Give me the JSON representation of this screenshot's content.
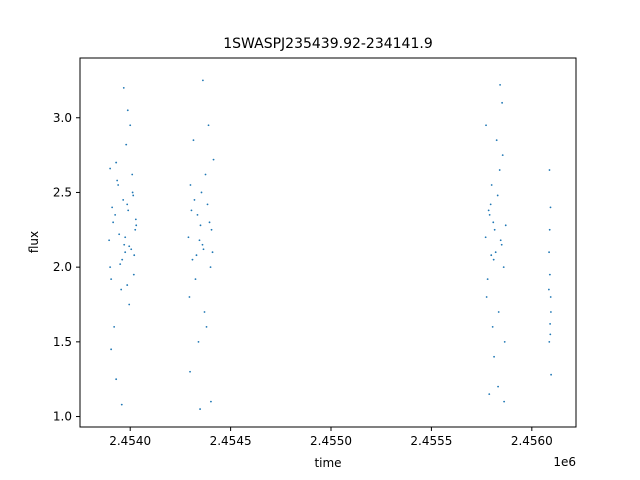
{
  "chart_data": {
    "type": "scatter",
    "title": "1SWASPJ235439.92-234141.9",
    "xlabel": "time",
    "ylabel": "flux",
    "x_offset_label": "1e6",
    "xlim": [
      2453750,
      2456220
    ],
    "ylim": [
      0.93,
      3.4
    ],
    "x_ticks": [
      2454000,
      2454500,
      2455000,
      2455500,
      2456000
    ],
    "x_tick_labels": [
      "2.4540",
      "2.4545",
      "2.4550",
      "2.4555",
      "2.4560"
    ],
    "y_ticks": [
      1.0,
      1.5,
      2.0,
      2.5,
      3.0
    ],
    "y_tick_labels": [
      "1.0",
      "1.5",
      "2.0",
      "2.5",
      "3.0"
    ],
    "grid": false,
    "marker_color": "#1f77b4",
    "series": [
      {
        "x": [
          2453895,
          2453925,
          2453960,
          2453985,
          2454005,
          2454030,
          2453905,
          2453940,
          2453975,
          2454010,
          2453915,
          2453955,
          2453990,
          2454020,
          2453930,
          2453970,
          2453995,
          2454015,
          2453900,
          2453945,
          2453980,
          2454025,
          2453920,
          2453965,
          2454000,
          2453910,
          2453950,
          2453988,
          2454018,
          2453935,
          2453905,
          2453975,
          2454012,
          2453930,
          2453968,
          2453900,
          2453985,
          2454028,
          2453958,
          2453995
        ],
        "y": [
          2.18,
          2.35,
          2.05,
          2.42,
          2.12,
          2.28,
          1.92,
          2.55,
          2.2,
          2.62,
          2.3,
          1.85,
          2.38,
          2.08,
          2.7,
          2.15,
          1.75,
          2.48,
          2.0,
          2.22,
          2.82,
          2.25,
          1.6,
          2.45,
          2.95,
          2.4,
          2.02,
          3.05,
          1.95,
          2.58,
          1.45,
          2.1,
          2.5,
          1.25,
          3.2,
          2.66,
          1.88,
          2.32,
          1.08,
          2.14
        ]
      },
      {
        "x": [
          2454290,
          2454310,
          2454335,
          2454360,
          2454385,
          2454410,
          2454300,
          2454325,
          2454350,
          2454375,
          2454400,
          2454295,
          2454320,
          2454345,
          2454370,
          2454395,
          2454415,
          2454305,
          2454330,
          2454355,
          2454380,
          2454405,
          2454315,
          2454340,
          2454365,
          2454390,
          2454298,
          2454362,
          2454402,
          2454348
        ],
        "y": [
          2.2,
          2.05,
          2.35,
          2.15,
          2.42,
          2.1,
          2.55,
          1.92,
          2.28,
          2.62,
          2.0,
          1.8,
          2.45,
          2.18,
          1.7,
          2.3,
          2.72,
          2.38,
          2.08,
          2.5,
          1.6,
          2.25,
          2.85,
          1.5,
          2.12,
          2.95,
          1.3,
          3.25,
          1.1,
          1.05
        ]
      },
      {
        "x": [
          2455770,
          2455790,
          2455810,
          2455830,
          2455850,
          2455870,
          2455780,
          2455800,
          2455820,
          2455840,
          2455860,
          2455775,
          2455795,
          2455815,
          2455835,
          2455855,
          2455785,
          2455805,
          2455825,
          2455845,
          2455865,
          2455772,
          2455812,
          2455852,
          2455832,
          2455798,
          2455842,
          2455862,
          2455808,
          2455788
        ],
        "y": [
          2.2,
          2.35,
          2.05,
          2.48,
          2.15,
          2.28,
          1.92,
          2.55,
          2.1,
          2.65,
          2.0,
          1.8,
          2.42,
          2.25,
          1.7,
          2.75,
          2.38,
          1.6,
          2.85,
          2.18,
          1.5,
          2.95,
          1.4,
          3.1,
          1.2,
          2.08,
          3.22,
          1.1,
          2.3,
          1.15
        ]
      },
      {
        "x": [
          2456085,
          2456090,
          2456095,
          2456088,
          2456092,
          2456086,
          2456094,
          2456089,
          2456091,
          2456087,
          2456093,
          2456096
        ],
        "y": [
          1.85,
          1.95,
          1.7,
          2.65,
          1.55,
          2.1,
          1.8,
          2.25,
          1.62,
          1.5,
          2.4,
          1.28
        ]
      }
    ]
  }
}
